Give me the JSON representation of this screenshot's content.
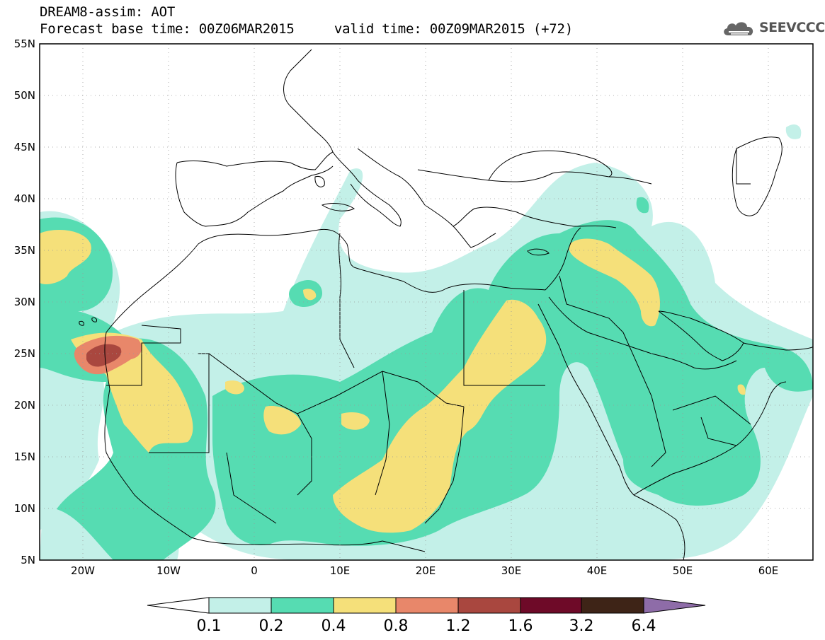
{
  "header": {
    "title": "DREAM8-assim: AOT",
    "subtitle_left": "Forecast base time: 00Z06MAR2015",
    "subtitle_right": "valid time: 00Z09MAR2015 (+72)",
    "logo_text": "SEEVCCC"
  },
  "map": {
    "lon_range": [
      -25,
      65
    ],
    "lat_range": [
      5,
      55
    ],
    "lat_ticks": [
      "55N",
      "50N",
      "45N",
      "40N",
      "35N",
      "30N",
      "25N",
      "20N",
      "15N",
      "10N",
      "5N"
    ],
    "lon_ticks": [
      "20W",
      "10W",
      "0",
      "10E",
      "20E",
      "30E",
      "40E",
      "50E",
      "60E"
    ],
    "grid": true,
    "field": "Aerosol optical thickness (dust)"
  },
  "colorbar": {
    "levels": [
      "0.1",
      "0.2",
      "0.4",
      "0.8",
      "1.2",
      "1.6",
      "3.2",
      "6.4"
    ],
    "colors": [
      "#ffffff",
      "#c3f0e8",
      "#56dcb2",
      "#f5e07a",
      "#e8876a",
      "#a9473f",
      "#6e0a28",
      "#3e2417",
      "#8e6ca8"
    ]
  }
}
